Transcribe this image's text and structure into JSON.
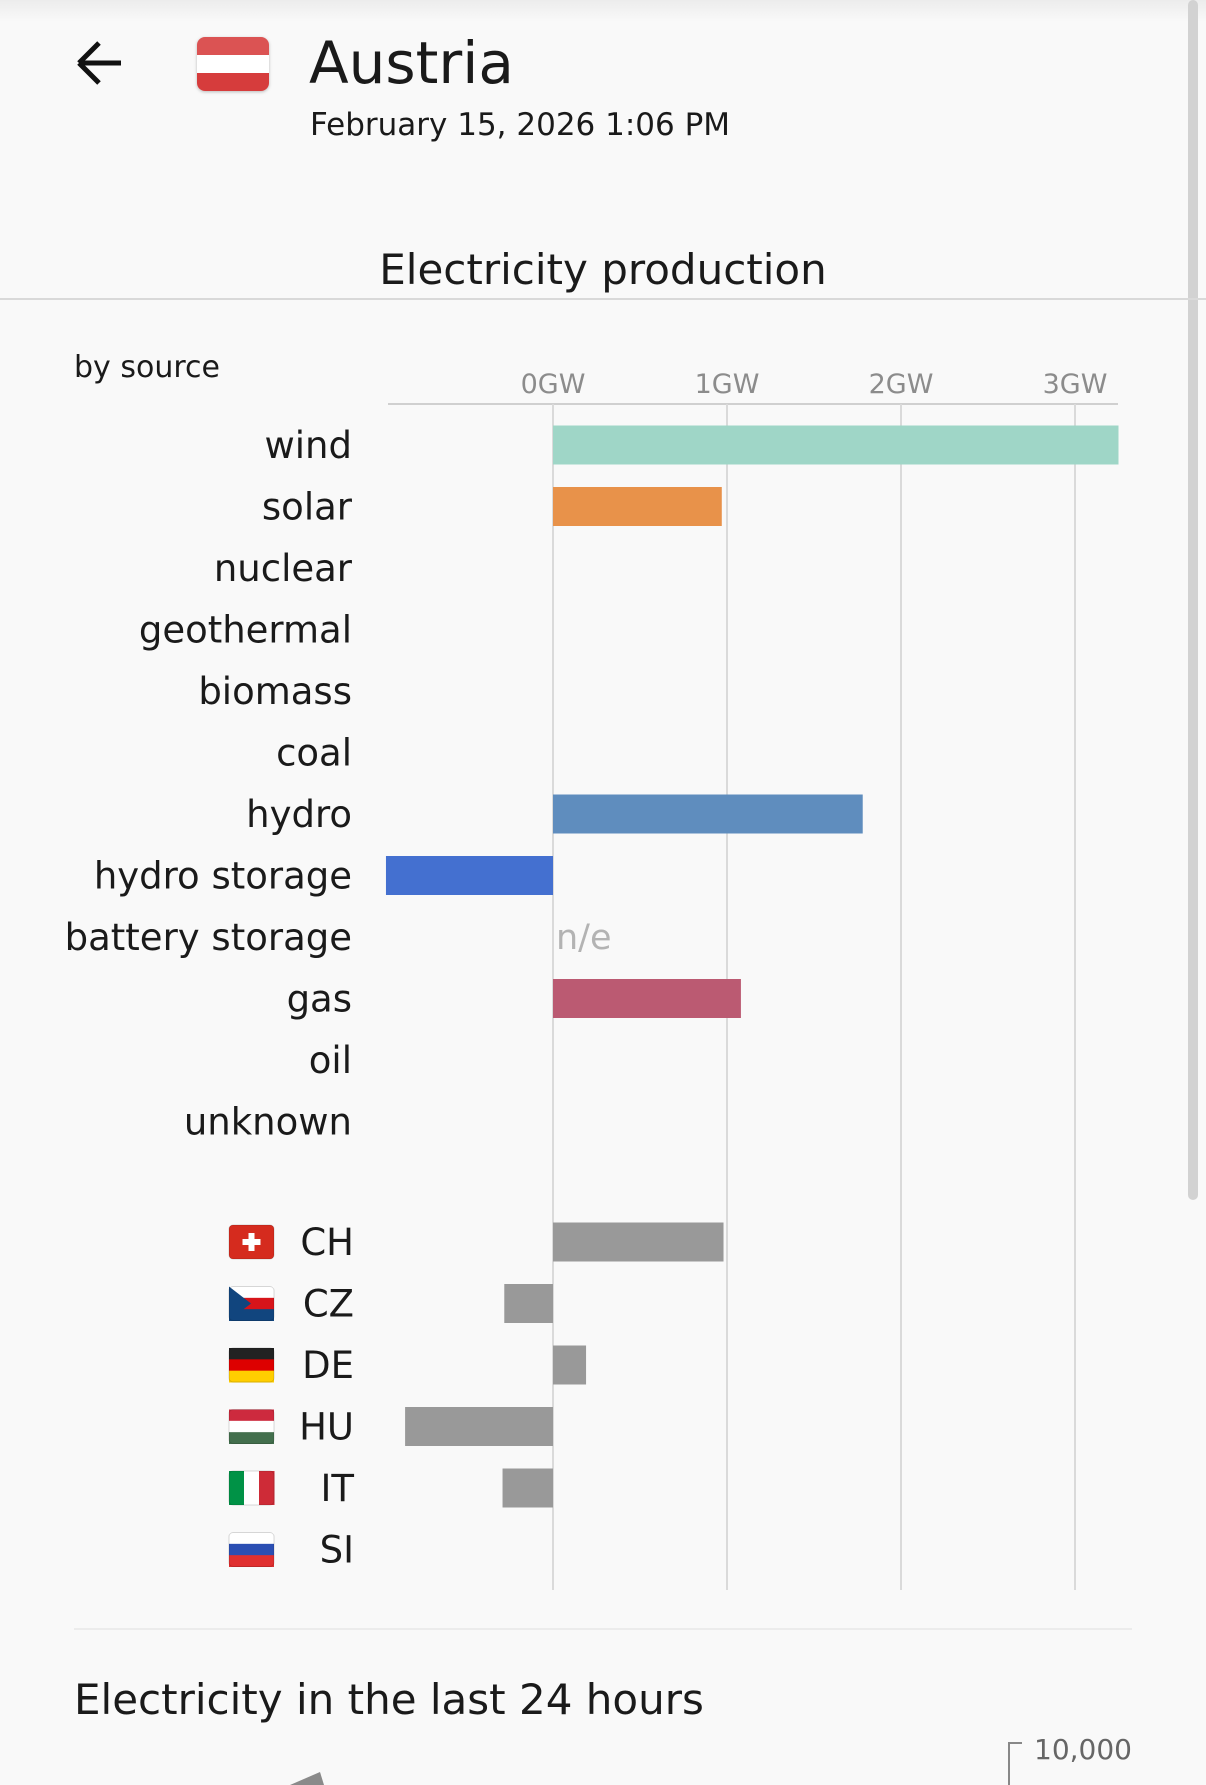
{
  "header": {
    "back_icon": "arrow-left-icon",
    "country": "Austria",
    "datetime": "February 15, 2026 1:06 PM",
    "flag_colors": [
      "#d63c3c",
      "#ffffff",
      "#d63c3c"
    ]
  },
  "production": {
    "title": "Electricity production",
    "subtitle": "by source"
  },
  "chart_data": {
    "type": "bar",
    "orientation": "horizontal",
    "unit": "GW",
    "ticks": [
      "0GW",
      "1GW",
      "2GW",
      "3GW"
    ],
    "tick_values": [
      0,
      1,
      2,
      3
    ],
    "xlim": [
      -0.96,
      3.25
    ],
    "grid": true,
    "categories": [
      "wind",
      "solar",
      "nuclear",
      "geothermal",
      "biomass",
      "coal",
      "hydro",
      "hydro storage",
      "battery storage",
      "gas",
      "oil",
      "unknown"
    ],
    "values": [
      3.25,
      0.97,
      0,
      0,
      0,
      0,
      1.78,
      -0.96,
      null,
      1.08,
      0,
      0
    ],
    "not_estimated_label": "n/e",
    "colors": {
      "wind": "#9fd6c7",
      "solar": "#e8924a",
      "hydro": "#5f8dbe",
      "hydro storage": "#4470d0",
      "gas": "#bb5a72",
      "exchange": "#999999"
    },
    "exchanges": [
      {
        "code": "CH",
        "value": 0.98,
        "flag": [
          "#d52b1e",
          "#d52b1e",
          "#d52b1e"
        ]
      },
      {
        "code": "CZ",
        "value": -0.28,
        "flag": [
          "#ffffff",
          "#d7141a",
          "#11457e"
        ]
      },
      {
        "code": "DE",
        "value": 0.19,
        "flag": [
          "#222222",
          "#dd0000",
          "#ffce00"
        ]
      },
      {
        "code": "HU",
        "value": -0.85,
        "flag": [
          "#cd2a3e",
          "#ffffff",
          "#436f4d"
        ]
      },
      {
        "code": "IT",
        "value": -0.29,
        "flag": [
          "#009246",
          "#ffffff",
          "#ce2b37"
        ]
      },
      {
        "code": "SI",
        "value": 0,
        "flag": [
          "#ffffff",
          "#2b4fb3",
          "#e03030"
        ]
      }
    ]
  },
  "last24": {
    "title": "Electricity in the last 24 hours",
    "y_tick": "10,000"
  }
}
